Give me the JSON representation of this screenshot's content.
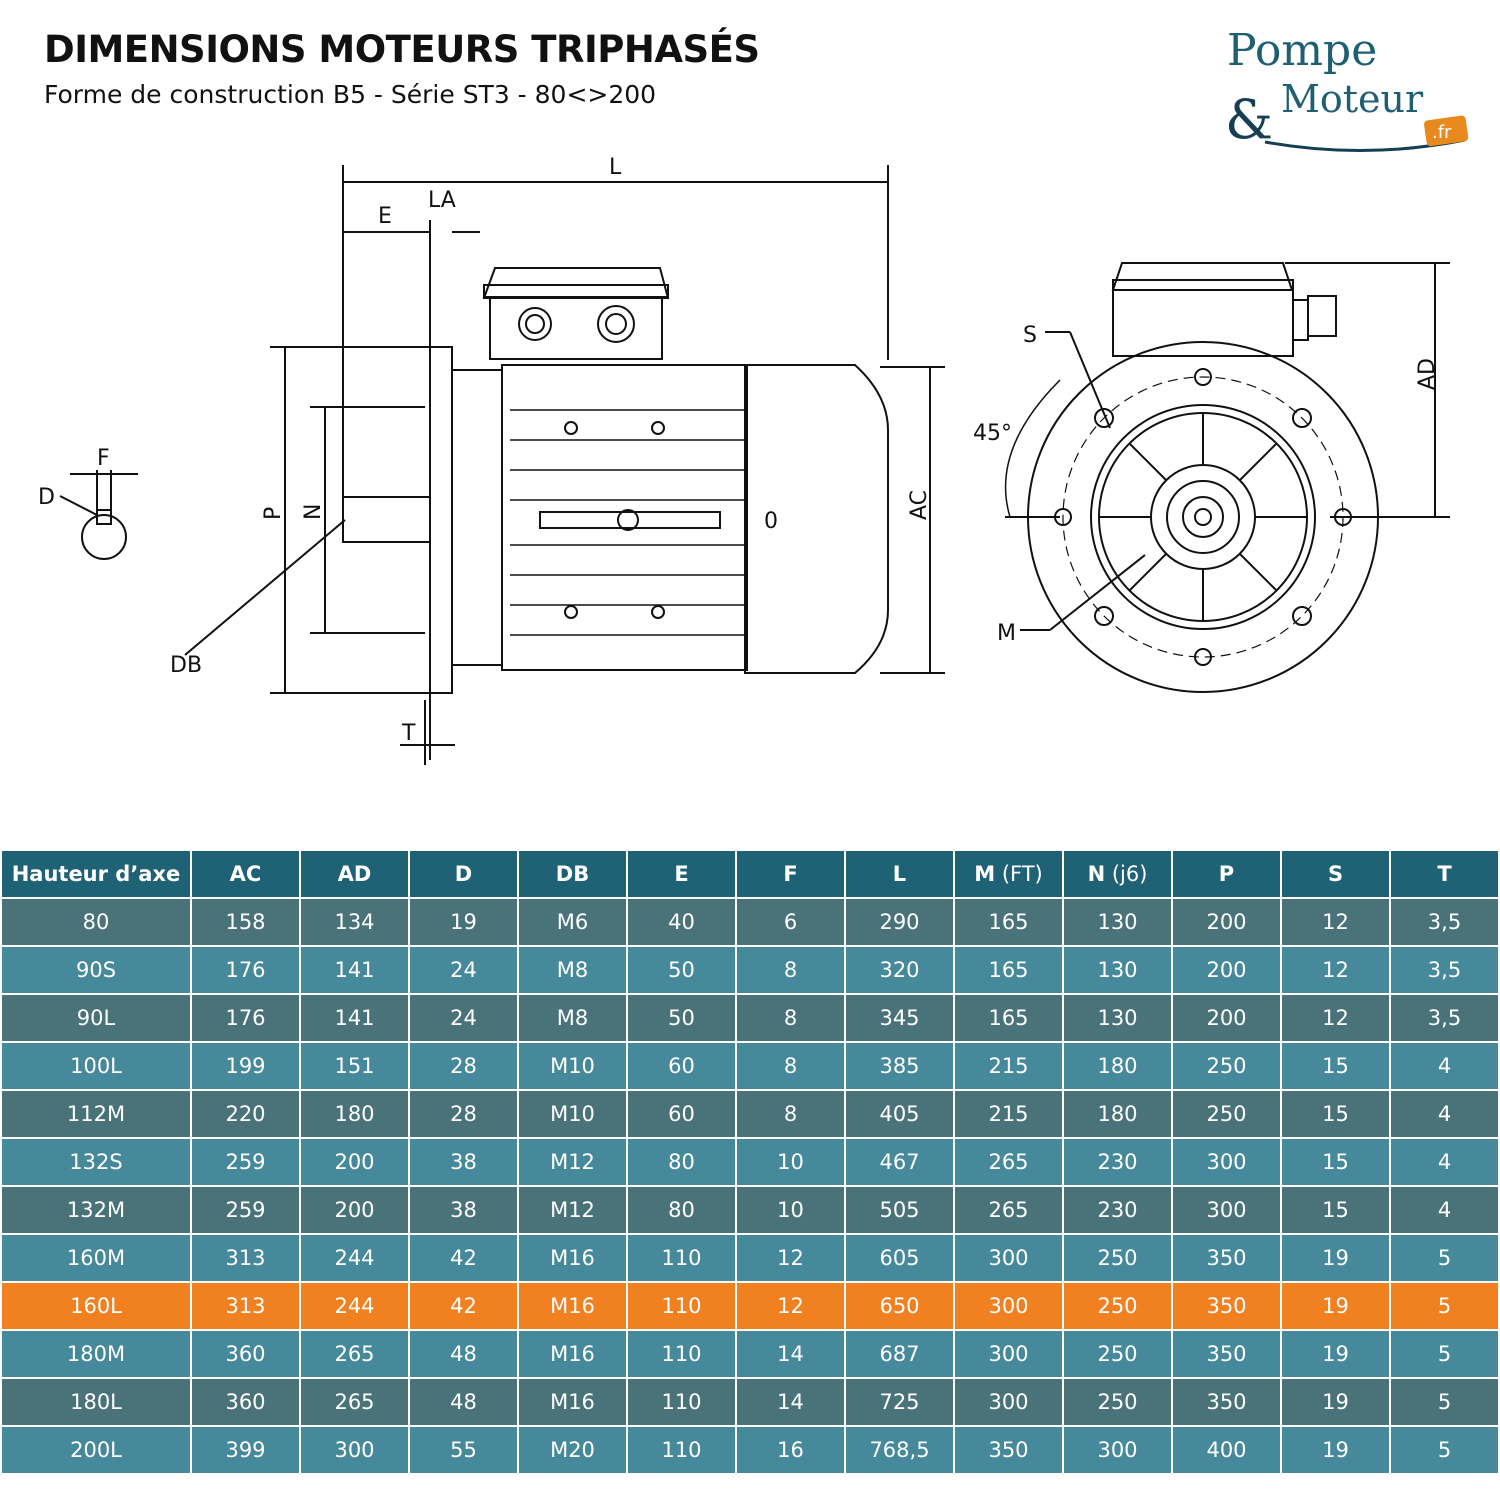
{
  "header": {
    "title": "DIMENSIONS MOTEURS TRIPHASÉS",
    "subtitle": "Forme de construction B5 - Série ST3 - 80<>200"
  },
  "logo": {
    "line1": "Pompe",
    "line2": "&Moteur",
    "badge": ".fr",
    "colors": {
      "text": "#1f5f73",
      "badge": "#e8891e"
    }
  },
  "drawing": {
    "labels": {
      "L": "L",
      "E": "E",
      "LA": "LA",
      "F": "F",
      "D": "D",
      "P": "P",
      "N": "N",
      "DB": "DB",
      "T": "T",
      "O": "0",
      "AC": "AC",
      "S": "S",
      "angle": "45°",
      "M": "M",
      "AD": "AD"
    }
  },
  "table": {
    "colors": {
      "header": "#1f6275",
      "dark": "#4a7379",
      "light": "#46899a",
      "highlight": "#f08020"
    },
    "headers": [
      {
        "main": "Hauteur d’axe",
        "sub": ""
      },
      {
        "main": "AC",
        "sub": ""
      },
      {
        "main": "AD",
        "sub": ""
      },
      {
        "main": "D",
        "sub": ""
      },
      {
        "main": "DB",
        "sub": ""
      },
      {
        "main": "E",
        "sub": ""
      },
      {
        "main": "F",
        "sub": ""
      },
      {
        "main": "L",
        "sub": ""
      },
      {
        "main": "M",
        "sub": " (FT)"
      },
      {
        "main": "N",
        "sub": " (j6)"
      },
      {
        "main": "P",
        "sub": ""
      },
      {
        "main": "S",
        "sub": ""
      },
      {
        "main": "T",
        "sub": ""
      }
    ],
    "rows": [
      {
        "style": "dark",
        "cells": [
          "80",
          "158",
          "134",
          "19",
          "M6",
          "40",
          "6",
          "290",
          "165",
          "130",
          "200",
          "12",
          "3,5"
        ]
      },
      {
        "style": "light",
        "cells": [
          "90S",
          "176",
          "141",
          "24",
          "M8",
          "50",
          "8",
          "320",
          "165",
          "130",
          "200",
          "12",
          "3,5"
        ]
      },
      {
        "style": "dark",
        "cells": [
          "90L",
          "176",
          "141",
          "24",
          "M8",
          "50",
          "8",
          "345",
          "165",
          "130",
          "200",
          "12",
          "3,5"
        ]
      },
      {
        "style": "light",
        "cells": [
          "100L",
          "199",
          "151",
          "28",
          "M10",
          "60",
          "8",
          "385",
          "215",
          "180",
          "250",
          "15",
          "4"
        ]
      },
      {
        "style": "dark",
        "cells": [
          "112M",
          "220",
          "180",
          "28",
          "M10",
          "60",
          "8",
          "405",
          "215",
          "180",
          "250",
          "15",
          "4"
        ]
      },
      {
        "style": "light",
        "cells": [
          "132S",
          "259",
          "200",
          "38",
          "M12",
          "80",
          "10",
          "467",
          "265",
          "230",
          "300",
          "15",
          "4"
        ]
      },
      {
        "style": "dark",
        "cells": [
          "132M",
          "259",
          "200",
          "38",
          "M12",
          "80",
          "10",
          "505",
          "265",
          "230",
          "300",
          "15",
          "4"
        ]
      },
      {
        "style": "light",
        "cells": [
          "160M",
          "313",
          "244",
          "42",
          "M16",
          "110",
          "12",
          "605",
          "300",
          "250",
          "350",
          "19",
          "5"
        ]
      },
      {
        "style": "hl",
        "cells": [
          "160L",
          "313",
          "244",
          "42",
          "M16",
          "110",
          "12",
          "650",
          "300",
          "250",
          "350",
          "19",
          "5"
        ]
      },
      {
        "style": "light",
        "cells": [
          "180M",
          "360",
          "265",
          "48",
          "M16",
          "110",
          "14",
          "687",
          "300",
          "250",
          "350",
          "19",
          "5"
        ]
      },
      {
        "style": "dark",
        "cells": [
          "180L",
          "360",
          "265",
          "48",
          "M16",
          "110",
          "14",
          "725",
          "300",
          "250",
          "350",
          "19",
          "5"
        ]
      },
      {
        "style": "light",
        "cells": [
          "200L",
          "399",
          "300",
          "55",
          "M20",
          "110",
          "16",
          "768,5",
          "350",
          "300",
          "400",
          "19",
          "5"
        ]
      }
    ]
  }
}
